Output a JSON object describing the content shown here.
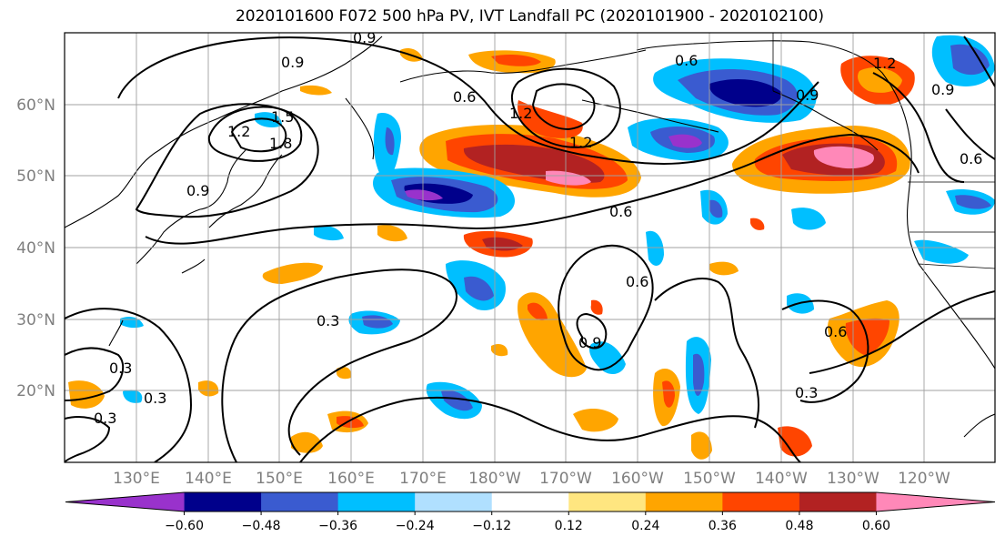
{
  "title": "2020101600 F072 500 hPa PV, IVT Landfall PC (2020101900 - 2020102100)",
  "lat_labels": [
    "60°N",
    "50°N",
    "40°N",
    "30°N",
    "20°N"
  ],
  "lon_labels": [
    "130°E",
    "140°E",
    "150°E",
    "160°E",
    "170°E",
    "180°W",
    "170°W",
    "160°W",
    "150°W",
    "140°W",
    "130°W",
    "120°W"
  ],
  "colorbar": {
    "ticks": [
      "−0.60",
      "−0.48",
      "−0.36",
      "−0.24",
      "−0.12",
      "0.12",
      "0.24",
      "0.36",
      "0.48",
      "0.60"
    ],
    "colors": [
      "#9932cc",
      "#00008b",
      "#3a5bd0",
      "#00bfff",
      "#b0e0ff",
      "#ffffff",
      "#ffe680",
      "#ffa500",
      "#ff4500",
      "#b22222",
      "#ff88b8"
    ]
  },
  "contour_labels": [
    "0.9",
    "0.6",
    "0.9",
    "0.6",
    "1.2",
    "1.5",
    "1.8",
    "1.2",
    "0.9",
    "0.6",
    "0.9",
    "0.6",
    "0.9",
    "0.3",
    "0.3",
    "0.3",
    "0.3",
    "0.6",
    "0.3",
    "1.2",
    "0.9",
    "0.6",
    "1.2"
  ]
}
